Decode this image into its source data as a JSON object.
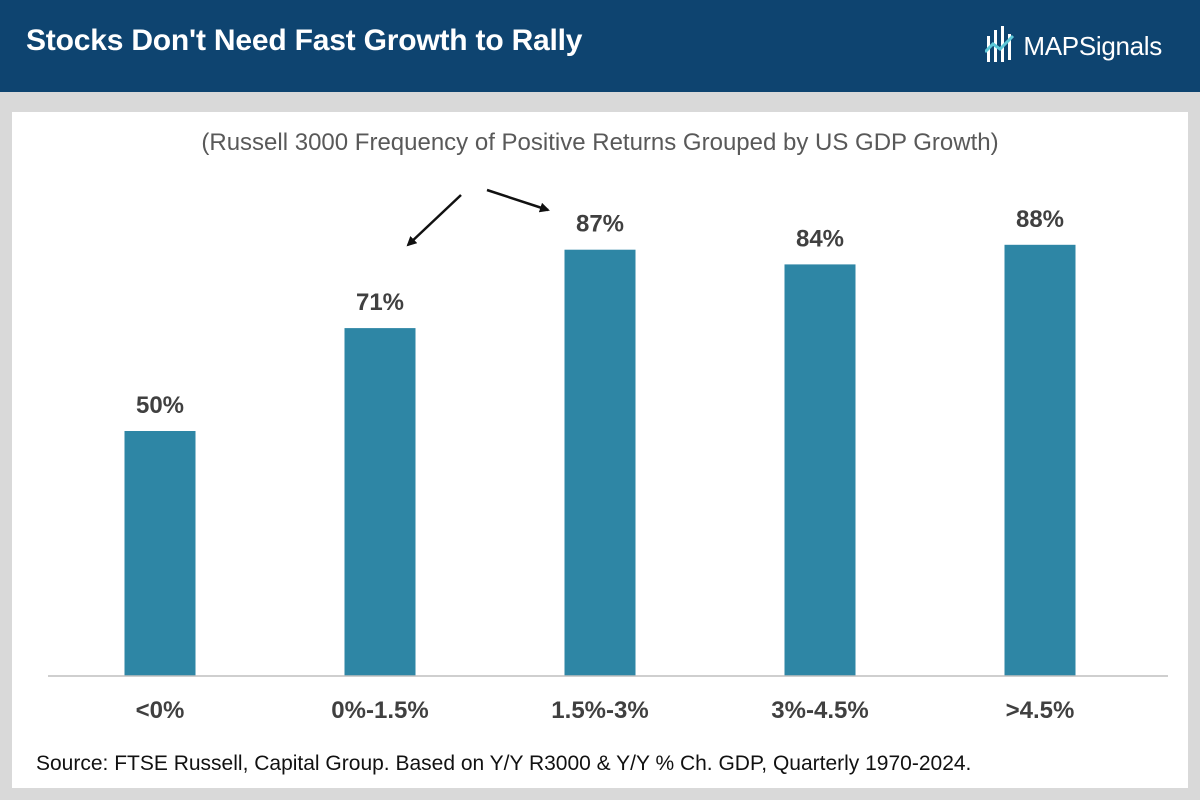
{
  "header": {
    "title": "Stocks Don't Need Fast Growth to Rally",
    "brand": {
      "part1": "MAP",
      "part2": "Signals",
      "icon": "map-signals-logo-icon"
    }
  },
  "colors": {
    "header_bg": "#0e4470",
    "bar": "#2e86a5",
    "background": "#d9d9d9"
  },
  "chart_data": {
    "type": "bar",
    "subtitle": "(Russell 3000 Frequency of Positive Returns Grouped by US GDP Growth)",
    "categories": [
      "<0%",
      "0%-1.5%",
      "1.5%-3%",
      "3%-4.5%",
      ">4.5%"
    ],
    "values": [
      50,
      71,
      87,
      84,
      88
    ],
    "value_labels": [
      "50%",
      "71%",
      "87%",
      "84%",
      "88%"
    ],
    "ylim": [
      0,
      100
    ],
    "xlabel": "",
    "ylabel": "",
    "grid": false,
    "annotations": [
      {
        "type": "arrow",
        "direction": "down-left",
        "target_category": "0%-1.5%"
      },
      {
        "type": "arrow",
        "direction": "right",
        "target_category": "1.5%-3%"
      }
    ]
  },
  "footer": {
    "source": "Source: FTSE Russell, Capital Group. Based on Y/Y R3000 & Y/Y % Ch. GDP, Quarterly 1970-2024."
  }
}
